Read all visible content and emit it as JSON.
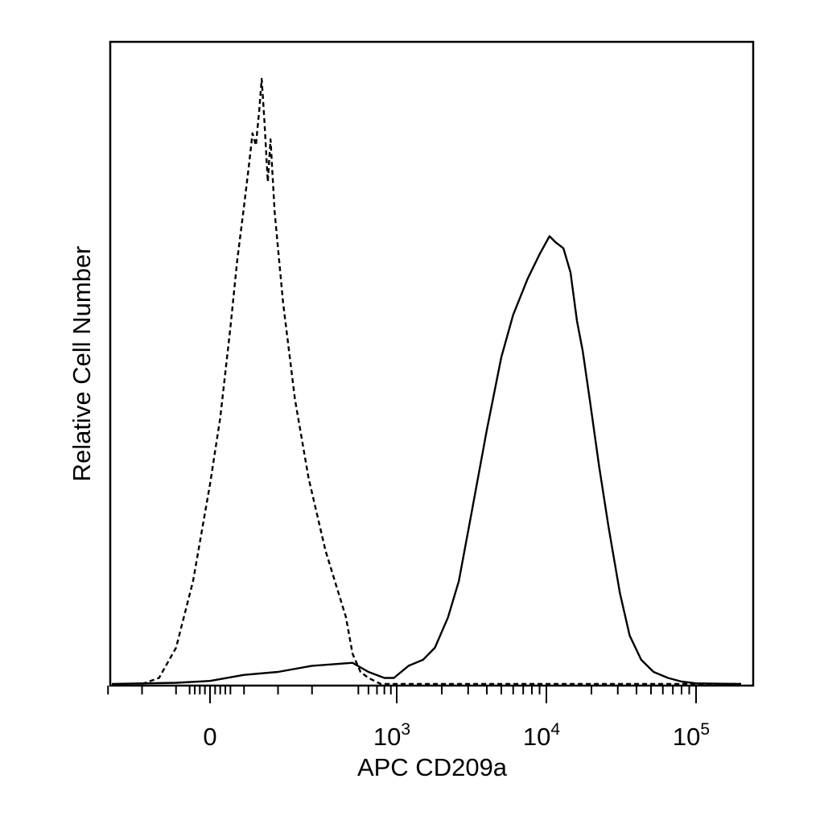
{
  "chart_data": {
    "type": "line",
    "title": "",
    "xlabel": "APC CD209a",
    "ylabel": "Relative Cell Number",
    "x_scale": "biexponential",
    "xlim": [
      -300,
      200000
    ],
    "ylim": [
      0,
      100
    ],
    "grid": false,
    "legend": "none",
    "x_ticks": [
      {
        "value": 0,
        "base": "0",
        "exp": ""
      },
      {
        "value": 1000,
        "base": "10",
        "exp": "3"
      },
      {
        "value": 10000,
        "base": "10",
        "exp": "4"
      },
      {
        "value": 100000,
        "base": "10",
        "exp": "5"
      }
    ],
    "series": [
      {
        "line_style": "dashed",
        "color": "#000000",
        "points": [
          [
            -200,
            0
          ],
          [
            -150,
            1
          ],
          [
            -100,
            6
          ],
          [
            -50,
            17
          ],
          [
            0,
            33
          ],
          [
            30,
            44
          ],
          [
            60,
            59
          ],
          [
            80,
            70
          ],
          [
            100,
            79
          ],
          [
            115,
            86
          ],
          [
            125,
            91
          ],
          [
            135,
            89
          ],
          [
            145,
            95
          ],
          [
            152,
            100
          ],
          [
            160,
            93
          ],
          [
            170,
            83
          ],
          [
            178,
            90
          ],
          [
            190,
            78
          ],
          [
            215,
            63
          ],
          [
            250,
            47
          ],
          [
            290,
            34
          ],
          [
            340,
            22
          ],
          [
            400,
            11
          ],
          [
            450,
            5
          ],
          [
            520,
            2
          ],
          [
            600,
            1
          ],
          [
            750,
            0
          ],
          [
            10000,
            0
          ],
          [
            200000,
            0
          ]
        ]
      },
      {
        "line_style": "solid",
        "color": "#000000",
        "points": [
          [
            -300,
            0
          ],
          [
            -100,
            0.2
          ],
          [
            0,
            0.5
          ],
          [
            100,
            1.5
          ],
          [
            200,
            2
          ],
          [
            300,
            3
          ],
          [
            450,
            3.5
          ],
          [
            600,
            2
          ],
          [
            800,
            1
          ],
          [
            950,
            1
          ],
          [
            1200,
            3
          ],
          [
            1500,
            4
          ],
          [
            1800,
            6
          ],
          [
            2200,
            11
          ],
          [
            2600,
            17
          ],
          [
            3200,
            29
          ],
          [
            4000,
            42
          ],
          [
            5000,
            54
          ],
          [
            6000,
            61
          ],
          [
            7500,
            67
          ],
          [
            9000,
            71
          ],
          [
            10500,
            74
          ],
          [
            11500,
            73
          ],
          [
            13000,
            72
          ],
          [
            14500,
            68
          ],
          [
            16000,
            60
          ],
          [
            17500,
            55
          ],
          [
            19500,
            47
          ],
          [
            22500,
            36
          ],
          [
            26000,
            26
          ],
          [
            31000,
            15
          ],
          [
            36000,
            8
          ],
          [
            43000,
            4
          ],
          [
            52000,
            2
          ],
          [
            65000,
            1
          ],
          [
            80000,
            0.4
          ],
          [
            100000,
            0.1
          ],
          [
            200000,
            0
          ]
        ]
      }
    ]
  }
}
